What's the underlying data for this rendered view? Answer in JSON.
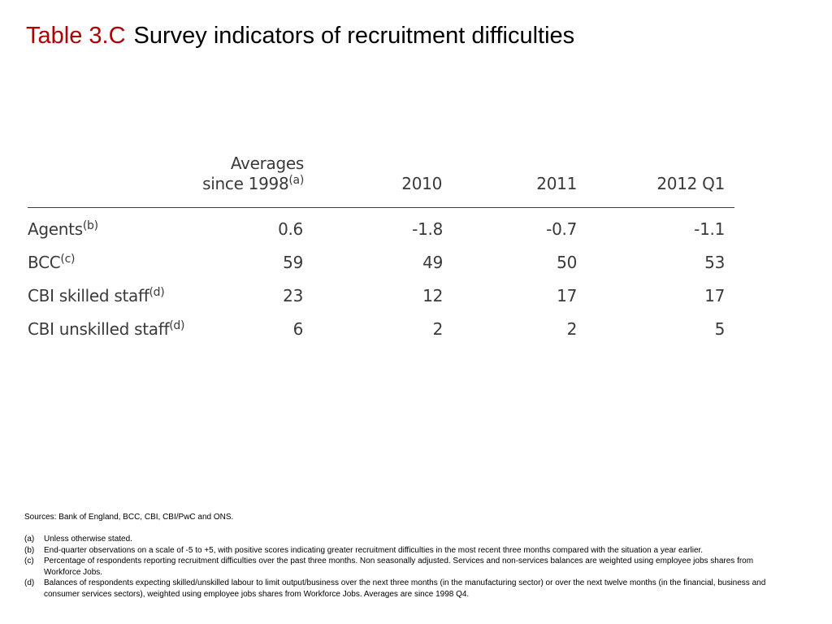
{
  "title": {
    "prefix": "Table 3.C",
    "text": "Survey indicators of recruitment difficulties"
  },
  "table": {
    "headers": [
      {
        "line1": "Averages",
        "line2": "since 1998",
        "sup": "(a)"
      },
      {
        "line1": "",
        "line2": "2010",
        "sup": ""
      },
      {
        "line1": "",
        "line2": "2011",
        "sup": ""
      },
      {
        "line1": "",
        "line2": "2012 Q1",
        "sup": ""
      }
    ],
    "rows": [
      {
        "label": "Agents",
        "sup": "(b)",
        "values": [
          "0.6",
          "-1.8",
          "-0.7",
          "-1.1"
        ]
      },
      {
        "label": "BCC",
        "sup": "(c)",
        "values": [
          "59",
          "49",
          "50",
          "53"
        ]
      },
      {
        "label": "CBI skilled staff",
        "sup": "(d)",
        "values": [
          "23",
          "12",
          "17",
          "17"
        ]
      },
      {
        "label": "CBI unskilled staff",
        "sup": "(d)",
        "values": [
          "6",
          "2",
          "2",
          "5"
        ]
      }
    ]
  },
  "notes": {
    "sources": "Sources:  Bank of England, BCC, CBI, CBI/PwC and ONS.",
    "items": [
      {
        "key": "(a)",
        "text": "Unless otherwise stated."
      },
      {
        "key": "(b)",
        "text": "End-quarter observations on a scale of -5 to +5, with positive scores indicating greater recruitment difficulties in the most recent three months compared with the situation a year earlier."
      },
      {
        "key": "(c)",
        "text": "Percentage of respondents reporting recruitment difficulties over the past three months.  Non seasonally adjusted.  Services and non-services balances are weighted using employee jobs shares from Workforce Jobs."
      },
      {
        "key": "(d)",
        "text": "Balances of respondents expecting skilled/unskilled labour to limit output/business over the next three months (in the manufacturing sector) or over the next twelve months (in the financial, business and consumer services sectors), weighted using employee jobs shares from Workforce Jobs.  Averages are since 1998 Q4."
      }
    ]
  }
}
